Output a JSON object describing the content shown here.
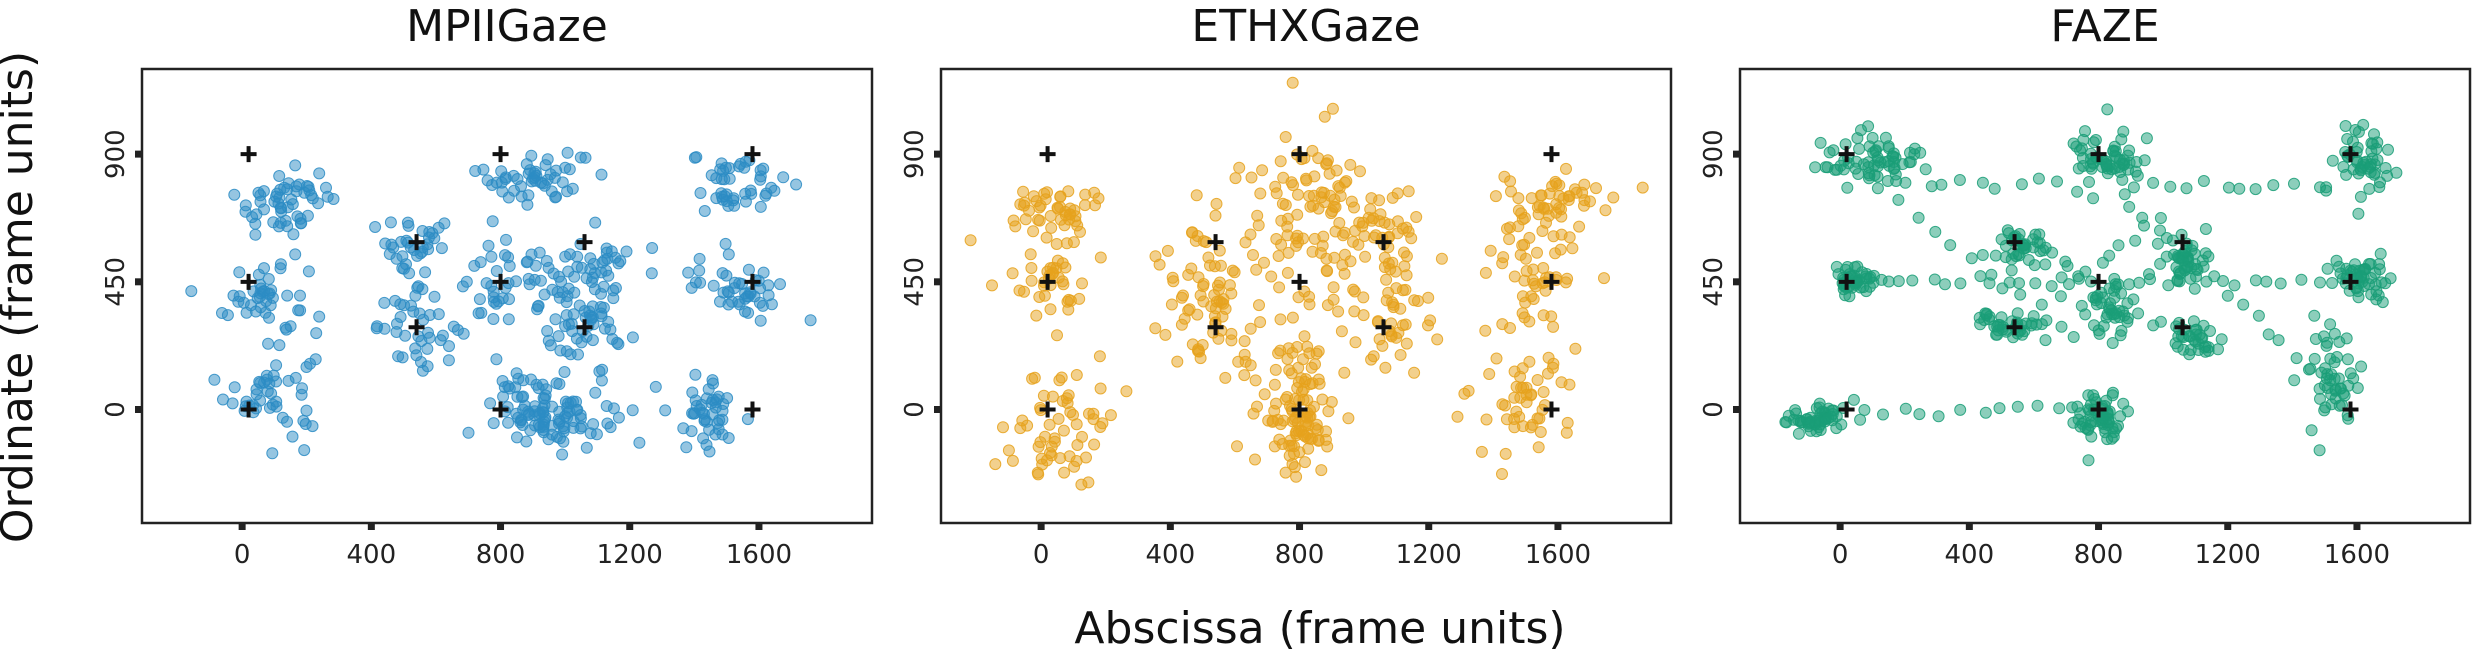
{
  "figure": {
    "xlabel": "Abscissa (frame units)",
    "ylabel": "Ordinate (frame units)"
  },
  "chart_data": [
    {
      "type": "scatter",
      "title": "MPIIGaze",
      "xlabel": "Abscissa (frame units)",
      "ylabel": "Ordinate (frame units)",
      "xlim": [
        -310,
        1950
      ],
      "ylim": [
        1200,
        -400
      ],
      "y_inverted": true,
      "xticks": [
        0,
        400,
        800,
        1200,
        1600
      ],
      "yticks": [
        0,
        450,
        900
      ],
      "grid": false,
      "color": "#2b8cc4",
      "targets": [
        [
          20,
          0
        ],
        [
          800,
          0
        ],
        [
          1580,
          0
        ],
        [
          20,
          450
        ],
        [
          800,
          450
        ],
        [
          1580,
          450
        ],
        [
          20,
          900
        ],
        [
          800,
          900
        ],
        [
          1580,
          900
        ],
        [
          540,
          290
        ],
        [
          1060,
          290
        ],
        [
          540,
          590
        ],
        [
          1060,
          590
        ]
      ],
      "clusters": [
        {
          "x": 90,
          "y": 60,
          "sx": 70,
          "sy": 75,
          "n": 45
        },
        {
          "x": 70,
          "y": 390,
          "sx": 65,
          "sy": 75,
          "n": 45
        },
        {
          "x": 130,
          "y": 730,
          "sx": 75,
          "sy": 60,
          "n": 55
        },
        {
          "x": 550,
          "y": 290,
          "sx": 65,
          "sy": 60,
          "n": 40
        },
        {
          "x": 540,
          "y": 560,
          "sx": 70,
          "sy": 55,
          "n": 35
        },
        {
          "x": 820,
          "y": 440,
          "sx": 80,
          "sy": 75,
          "n": 45
        },
        {
          "x": 960,
          "y": 0,
          "sx": 90,
          "sy": 65,
          "n": 110
        },
        {
          "x": 1060,
          "y": 270,
          "sx": 70,
          "sy": 70,
          "n": 45
        },
        {
          "x": 1080,
          "y": 490,
          "sx": 70,
          "sy": 70,
          "n": 45
        },
        {
          "x": 900,
          "y": 820,
          "sx": 85,
          "sy": 50,
          "n": 50
        },
        {
          "x": 1440,
          "y": 0,
          "sx": 55,
          "sy": 60,
          "n": 45
        },
        {
          "x": 1540,
          "y": 430,
          "sx": 75,
          "sy": 55,
          "n": 45
        },
        {
          "x": 1530,
          "y": 800,
          "sx": 70,
          "sy": 60,
          "n": 45
        }
      ]
    },
    {
      "type": "scatter",
      "title": "ETHXGaze",
      "xlabel": "Abscissa (frame units)",
      "ylabel": "Ordinate (frame units)",
      "xlim": [
        -310,
        1950
      ],
      "ylim": [
        1200,
        -400
      ],
      "y_inverted": true,
      "xticks": [
        0,
        400,
        800,
        1200,
        1600
      ],
      "yticks": [
        0,
        450,
        900
      ],
      "grid": false,
      "color": "#e6a21c",
      "targets": [
        [
          20,
          0
        ],
        [
          800,
          0
        ],
        [
          1580,
          0
        ],
        [
          20,
          450
        ],
        [
          800,
          450
        ],
        [
          1580,
          450
        ],
        [
          20,
          900
        ],
        [
          800,
          900
        ],
        [
          1580,
          900
        ],
        [
          540,
          290
        ],
        [
          1060,
          290
        ],
        [
          540,
          590
        ],
        [
          1060,
          590
        ]
      ],
      "clusters": [
        {
          "x": 60,
          "y": -70,
          "sx": 80,
          "sy": 120,
          "n": 60
        },
        {
          "x": 30,
          "y": 470,
          "sx": 55,
          "sy": 80,
          "n": 40
        },
        {
          "x": 40,
          "y": 700,
          "sx": 80,
          "sy": 45,
          "n": 45
        },
        {
          "x": 520,
          "y": 420,
          "sx": 75,
          "sy": 160,
          "n": 80
        },
        {
          "x": 790,
          "y": 0,
          "sx": 60,
          "sy": 130,
          "n": 110
        },
        {
          "x": 820,
          "y": 680,
          "sx": 90,
          "sy": 150,
          "n": 90
        },
        {
          "x": 1060,
          "y": 340,
          "sx": 70,
          "sy": 100,
          "n": 45
        },
        {
          "x": 1010,
          "y": 640,
          "sx": 90,
          "sy": 80,
          "n": 55
        },
        {
          "x": 1480,
          "y": 10,
          "sx": 80,
          "sy": 110,
          "n": 50
        },
        {
          "x": 1530,
          "y": 470,
          "sx": 80,
          "sy": 110,
          "n": 55
        },
        {
          "x": 1600,
          "y": 740,
          "sx": 90,
          "sy": 45,
          "n": 45
        }
      ]
    },
    {
      "type": "scatter",
      "title": "FAZE",
      "xlabel": "Abscissa (frame units)",
      "ylabel": "Ordinate (frame units)",
      "xlim": [
        -310,
        1950
      ],
      "ylim": [
        1200,
        -400
      ],
      "y_inverted": true,
      "xticks": [
        0,
        400,
        800,
        1200,
        1600
      ],
      "yticks": [
        0,
        450,
        900
      ],
      "grid": false,
      "color": "#1a9e77",
      "targets": [
        [
          20,
          0
        ],
        [
          800,
          0
        ],
        [
          1580,
          0
        ],
        [
          20,
          450
        ],
        [
          800,
          450
        ],
        [
          1580,
          450
        ],
        [
          20,
          900
        ],
        [
          800,
          900
        ],
        [
          1580,
          900
        ],
        [
          540,
          290
        ],
        [
          1060,
          290
        ],
        [
          540,
          590
        ],
        [
          1060,
          590
        ]
      ],
      "clusters": [
        {
          "x": -60,
          "y": -30,
          "sx": 55,
          "sy": 25,
          "n": 55
        },
        {
          "x": 40,
          "y": 450,
          "sx": 40,
          "sy": 30,
          "n": 45
        },
        {
          "x": 100,
          "y": 880,
          "sx": 75,
          "sy": 45,
          "n": 65
        },
        {
          "x": 530,
          "y": 290,
          "sx": 55,
          "sy": 25,
          "n": 40
        },
        {
          "x": 560,
          "y": 570,
          "sx": 45,
          "sy": 35,
          "n": 40
        },
        {
          "x": 810,
          "y": -30,
          "sx": 40,
          "sy": 45,
          "n": 60
        },
        {
          "x": 830,
          "y": 350,
          "sx": 35,
          "sy": 55,
          "n": 40
        },
        {
          "x": 830,
          "y": 880,
          "sx": 55,
          "sy": 55,
          "n": 60
        },
        {
          "x": 1090,
          "y": 250,
          "sx": 45,
          "sy": 30,
          "n": 35
        },
        {
          "x": 1060,
          "y": 520,
          "sx": 40,
          "sy": 50,
          "n": 45
        },
        {
          "x": 1520,
          "y": 100,
          "sx": 40,
          "sy": 90,
          "n": 50
        },
        {
          "x": 1610,
          "y": 470,
          "sx": 45,
          "sy": 40,
          "n": 50
        },
        {
          "x": 1610,
          "y": 880,
          "sx": 45,
          "sy": 55,
          "n": 50
        }
      ],
      "trails": [
        {
          "from": [
            40,
            0
          ],
          "to": [
            760,
            0
          ],
          "n": 12
        },
        {
          "from": [
            120,
            450
          ],
          "to": [
            760,
            450
          ],
          "n": 14
        },
        {
          "from": [
            860,
            450
          ],
          "to": [
            1540,
            450
          ],
          "n": 14
        },
        {
          "from": [
            180,
            790
          ],
          "to": [
            760,
            790
          ],
          "n": 10
        },
        {
          "from": [
            880,
            790
          ],
          "to": [
            1540,
            790
          ],
          "n": 12
        },
        {
          "from": [
            100,
            790
          ],
          "to": [
            760,
            230
          ],
          "n": 12
        },
        {
          "from": [
            880,
            740
          ],
          "to": [
            1480,
            120
          ],
          "n": 14
        },
        {
          "from": [
            620,
            350
          ],
          "to": [
            1000,
            690
          ],
          "n": 10
        },
        {
          "from": [
            620,
            580
          ],
          "to": [
            1000,
            290
          ],
          "n": 10
        }
      ]
    }
  ]
}
